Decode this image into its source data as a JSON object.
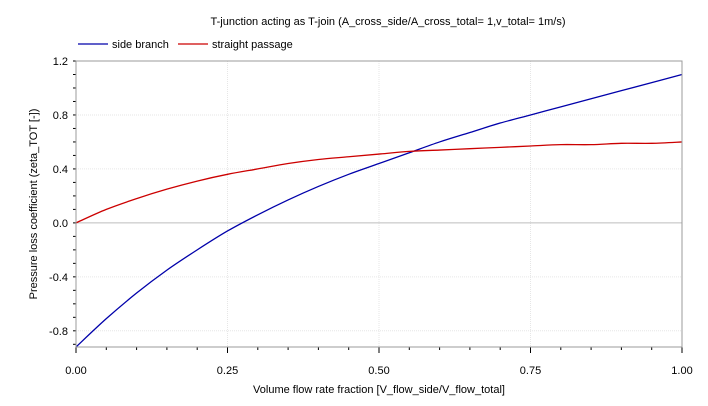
{
  "chart_data": {
    "type": "line",
    "title": "T-junction acting as T-join (A_cross_side/A_cross_total= 1,v_total= 1m/s)",
    "xlabel": "Volume flow rate fraction [V_flow_side/V_flow_total]",
    "ylabel": "Pressure loss coefficient (zeta_TOT [-])",
    "xlim": [
      0.0,
      1.0
    ],
    "ylim": [
      -0.92,
      1.2
    ],
    "x_ticks": [
      "0.00",
      "0.25",
      "0.50",
      "0.75",
      "1.00"
    ],
    "y_ticks": [
      "1.2",
      "0.8",
      "0.4",
      "0.0",
      "-0.4",
      "-0.8"
    ],
    "grid": true,
    "legend_position": "top-left",
    "series": [
      {
        "name": "side branch",
        "color": "#0000aa",
        "x": [
          0.0,
          0.05,
          0.1,
          0.15,
          0.2,
          0.25,
          0.3,
          0.35,
          0.4,
          0.45,
          0.5,
          0.55,
          0.6,
          0.65,
          0.7,
          0.75,
          0.8,
          0.85,
          0.9,
          0.95,
          1.0
        ],
        "y": [
          -0.92,
          -0.71,
          -0.52,
          -0.35,
          -0.2,
          -0.06,
          0.06,
          0.17,
          0.27,
          0.36,
          0.44,
          0.52,
          0.6,
          0.67,
          0.74,
          0.8,
          0.86,
          0.92,
          0.98,
          1.04,
          1.1
        ]
      },
      {
        "name": "straight passage",
        "color": "#cc0000",
        "x": [
          0.0,
          0.05,
          0.1,
          0.15,
          0.2,
          0.25,
          0.3,
          0.35,
          0.4,
          0.45,
          0.5,
          0.55,
          0.6,
          0.65,
          0.7,
          0.75,
          0.8,
          0.85,
          0.9,
          0.95,
          1.0
        ],
        "y": [
          0.0,
          0.1,
          0.18,
          0.25,
          0.31,
          0.36,
          0.4,
          0.44,
          0.47,
          0.49,
          0.51,
          0.53,
          0.54,
          0.55,
          0.56,
          0.57,
          0.58,
          0.58,
          0.59,
          0.59,
          0.6
        ]
      }
    ]
  }
}
